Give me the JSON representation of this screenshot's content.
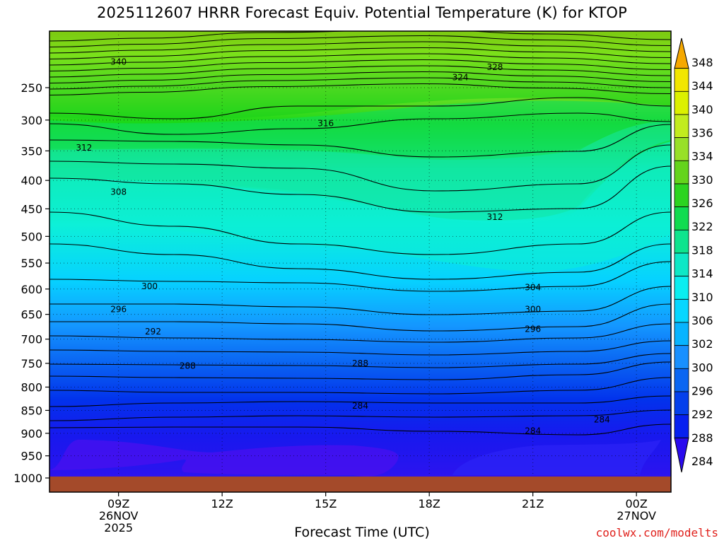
{
  "chart_data": {
    "type": "heatmap",
    "title": "2025112607 HRRR Forecast Equiv. Potential Temperature (K) for KTOP",
    "xlabel": "Forecast Time (UTC)",
    "ylabel": "",
    "y_ticks": [
      "250",
      "300",
      "350",
      "400",
      "450",
      "500",
      "550",
      "600",
      "650",
      "700",
      "750",
      "800",
      "850",
      "900",
      "950",
      "1000"
    ],
    "y_values": [
      250,
      300,
      350,
      400,
      450,
      500,
      550,
      600,
      650,
      700,
      750,
      800,
      850,
      900,
      950,
      1000
    ],
    "x_ticks": [
      {
        "hour": 9,
        "label": "09Z",
        "line2": "26NOV",
        "line3": "2025"
      },
      {
        "hour": 12,
        "label": "12Z",
        "line2": "",
        "line3": ""
      },
      {
        "hour": 15,
        "label": "15Z",
        "line2": "",
        "line3": ""
      },
      {
        "hour": 18,
        "label": "18Z",
        "line2": "",
        "line3": ""
      },
      {
        "hour": 21,
        "label": "21Z",
        "line2": "",
        "line3": ""
      },
      {
        "hour": 24,
        "label": "00Z",
        "line2": "27NOV",
        "line3": ""
      }
    ],
    "x_range_hours": [
      7.0,
      25.0
    ],
    "y_range_hpa": [
      200,
      1000
    ],
    "colorbar_levels": [
      "348",
      "344",
      "340",
      "336",
      "334",
      "330",
      "326",
      "322",
      "318",
      "314",
      "310",
      "306",
      "302",
      "300",
      "296",
      "292",
      "288",
      "284"
    ],
    "contour_labels": [
      {
        "text": "340",
        "hour": 9.0,
        "p": 212
      },
      {
        "text": "328",
        "hour": 19.9,
        "p": 220
      },
      {
        "text": "324",
        "hour": 18.9,
        "p": 235
      },
      {
        "text": "316",
        "hour": 15.0,
        "p": 305
      },
      {
        "text": "312",
        "hour": 8.0,
        "p": 345
      },
      {
        "text": "308",
        "hour": 9.0,
        "p": 420
      },
      {
        "text": "312",
        "hour": 19.9,
        "p": 465
      },
      {
        "text": "300",
        "hour": 9.9,
        "p": 595
      },
      {
        "text": "304",
        "hour": 21.0,
        "p": 597
      },
      {
        "text": "296",
        "hour": 9.0,
        "p": 640
      },
      {
        "text": "300",
        "hour": 21.0,
        "p": 640
      },
      {
        "text": "292",
        "hour": 10.0,
        "p": 685
      },
      {
        "text": "296",
        "hour": 21.0,
        "p": 680
      },
      {
        "text": "288",
        "hour": 11.0,
        "p": 755
      },
      {
        "text": "288",
        "hour": 16.0,
        "p": 750
      },
      {
        "text": "284",
        "hour": 16.0,
        "p": 840
      },
      {
        "text": "284",
        "hour": 23.0,
        "p": 870
      },
      {
        "text": "284",
        "hour": 21.0,
        "p": 895
      }
    ],
    "legend_placement": "right",
    "grid": true
  },
  "credit": "coolwx.com/modelts"
}
